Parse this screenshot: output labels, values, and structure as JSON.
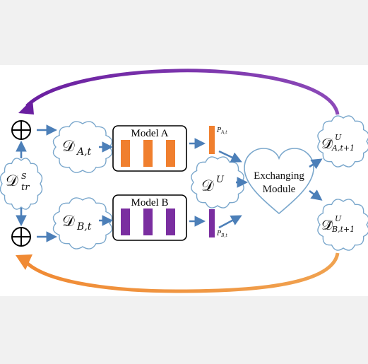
{
  "models": {
    "a": {
      "label": "Model A"
    },
    "b": {
      "label": "Model B"
    }
  },
  "exchange": {
    "line1": "Exchanging",
    "line2": "Module"
  },
  "nodes": {
    "d_tr_s": {
      "base": "𝒟",
      "sub": "tr",
      "sup": "S"
    },
    "d_a_t": {
      "base": "𝒟",
      "sub": "A,t"
    },
    "d_b_t": {
      "base": "𝒟",
      "sub": "B,t"
    },
    "d_u": {
      "base": "𝒟",
      "sup": "U"
    },
    "d_a_t1": {
      "base": "𝒟̄",
      "sub": "A,t+1",
      "sup": "U"
    },
    "d_b_t1": {
      "base": "𝒟̄",
      "sub": "B,t+1",
      "sup": "U"
    }
  },
  "outputs": {
    "p_a": {
      "base": "P",
      "sub": "A,t"
    },
    "p_b": {
      "base": "P",
      "sub": "B,t"
    }
  },
  "operators": {
    "plus": "⊕"
  },
  "colors": {
    "orange": "#f07f2e",
    "purple": "#7a2ea0",
    "arrow_blue": "#4c7fb8",
    "cloud_stroke": "#7aa7cc",
    "cloud_fill": "#ffffff",
    "loop_purple": "#6b2aa0",
    "loop_orange": "#f07f2e"
  }
}
